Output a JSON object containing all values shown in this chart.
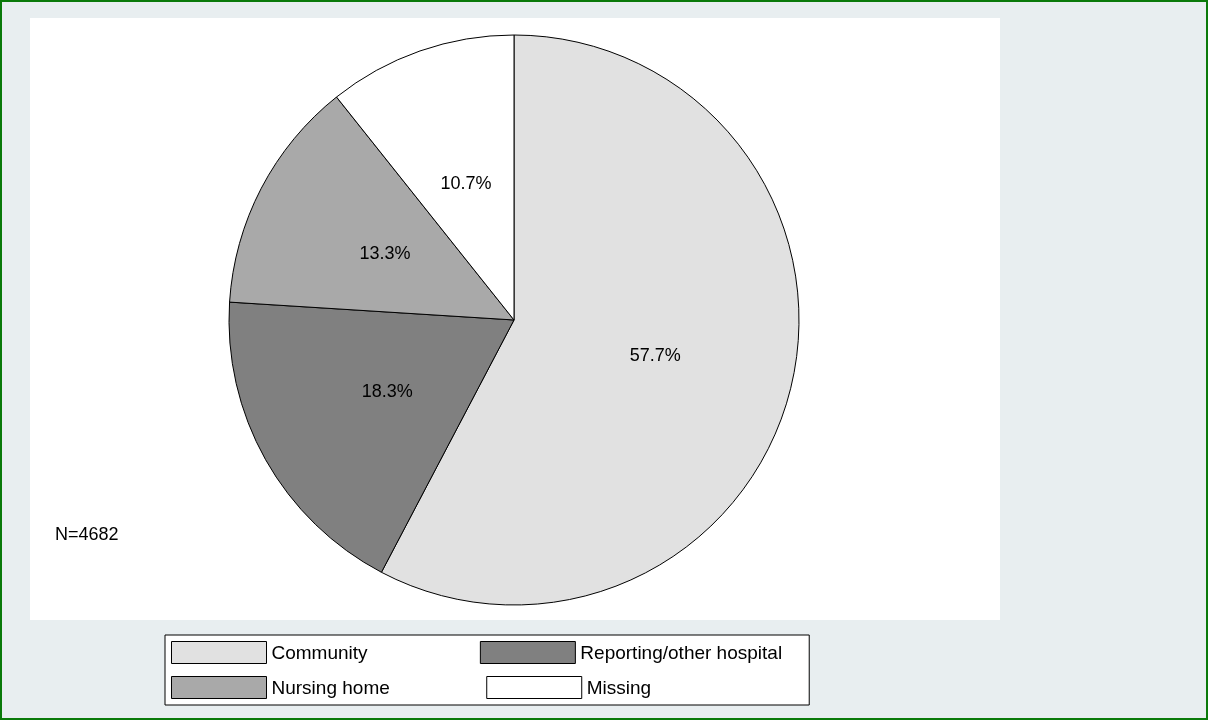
{
  "chart_data": {
    "type": "pie",
    "categories": [
      "Community",
      "Reporting/other hospital",
      "Nursing home",
      "Missing"
    ],
    "values": [
      57.7,
      18.3,
      13.3,
      10.7
    ],
    "colors": [
      "#e1e1e1",
      "#808080",
      "#a9a9a9",
      "#ffffff"
    ],
    "value_labels": [
      "57.7%",
      "18.3%",
      "13.3%",
      "10.7%"
    ],
    "legend": "bottom",
    "annotations": [
      "N=4682"
    ]
  }
}
